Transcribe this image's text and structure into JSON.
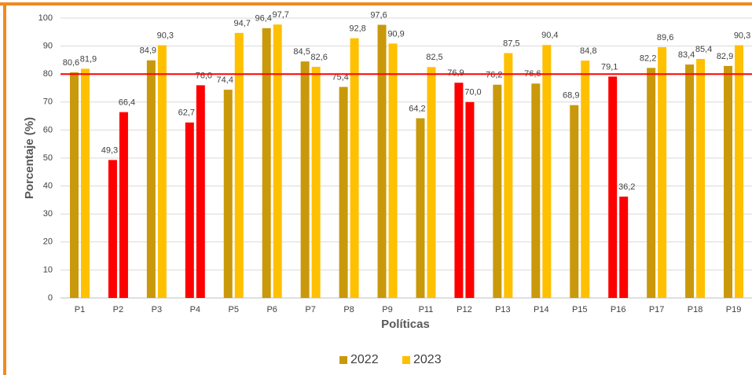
{
  "chart_data": {
    "type": "bar",
    "y_axis_title": "Porcentaje (%)",
    "x_axis_title": "Políticas",
    "categories": [
      "P1",
      "P2",
      "P3",
      "P4",
      "P5",
      "P6",
      "P7",
      "P8",
      "P9",
      "P11",
      "P12",
      "P13",
      "P14",
      "P15",
      "P16",
      "P17",
      "P18",
      "P19"
    ],
    "series": [
      {
        "name": "2022",
        "color": "#c9990b",
        "colors": [
          "#c9990b",
          "#ff0000",
          "#c9990b",
          "#ff0000",
          "#c9990b",
          "#c9990b",
          "#c9990b",
          "#c9990b",
          "#c9990b",
          "#c9990b",
          "#ff0000",
          "#c9990b",
          "#c9990b",
          "#c9990b",
          "#ff0000",
          "#c9990b",
          "#c9990b",
          "#c9990b"
        ],
        "values": [
          80.6,
          49.3,
          84.9,
          62.7,
          74.4,
          96.4,
          84.5,
          75.4,
          97.6,
          64.2,
          76.9,
          76.2,
          76.6,
          68.9,
          79.1,
          82.2,
          83.4,
          82.9
        ],
        "value_labels": [
          "80,6",
          "49,3",
          "84,9",
          "62,7",
          "74,4",
          "96,4",
          "84,5",
          "75,4",
          "97,6",
          "64,2",
          "76,9",
          "76,2",
          "76,6",
          "68,9",
          "79,1",
          "82,2",
          "83,4",
          "82,9"
        ]
      },
      {
        "name": "2023",
        "color": "#ffc000",
        "colors": [
          "#ffc000",
          "#ff0000",
          "#ffc000",
          "#ff0000",
          "#ffc000",
          "#ffc000",
          "#ffc000",
          "#ffc000",
          "#ffc000",
          "#ffc000",
          "#ff0000",
          "#ffc000",
          "#ffc000",
          "#ffc000",
          "#ff0000",
          "#ffc000",
          "#ffc000",
          "#ffc000"
        ],
        "values": [
          81.9,
          66.4,
          90.3,
          76.0,
          94.7,
          97.7,
          82.6,
          92.8,
          90.9,
          82.5,
          70.0,
          87.5,
          90.4,
          84.8,
          36.2,
          89.6,
          85.4,
          90.3
        ],
        "value_labels": [
          "81,9",
          "66,4",
          "90,3",
          "76,0",
          "94,7",
          "97,7",
          "82,6",
          "92,8",
          "90,9",
          "82,5",
          "70,0",
          "87,5",
          "90,4",
          "84,8",
          "36,2",
          "89,6",
          "85,4",
          "90,3"
        ]
      }
    ],
    "ylim": [
      0,
      100
    ],
    "yticks": [
      0,
      10,
      20,
      30,
      40,
      50,
      60,
      70,
      80,
      90,
      100
    ],
    "grid": true,
    "reference_line": {
      "value": 80,
      "color": "#ff0000"
    },
    "legend": "bottom"
  }
}
